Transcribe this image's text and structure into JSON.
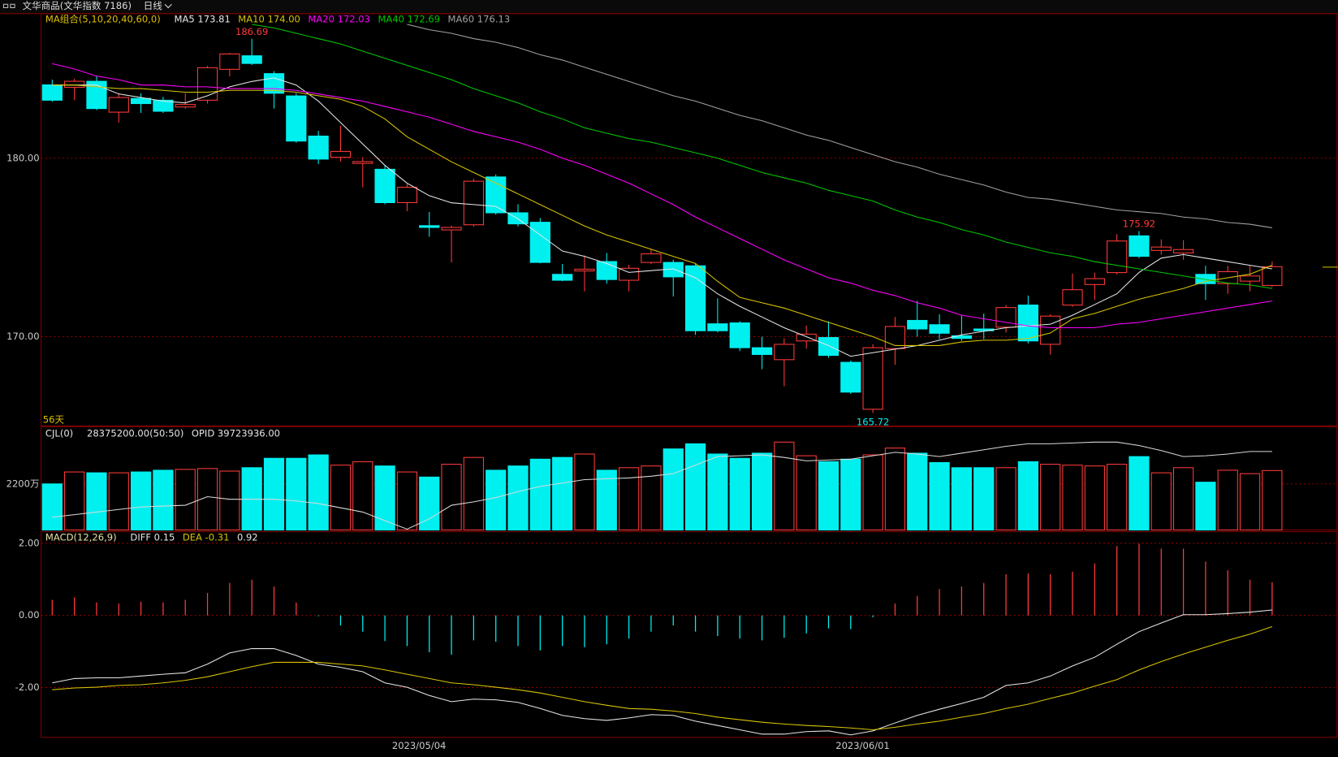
{
  "header": {
    "title": "文华商品(文华指数 7186)",
    "period": "日线"
  },
  "x_labels": [
    "2023/05/04",
    "2023/06/01"
  ],
  "chart_data": [
    {
      "type": "candlestick",
      "legend": "MA组合(5,10,20,40,60,0)",
      "legend_color": "#e0c000",
      "legend_items": [
        "MA5 173.81",
        "MA10 174.00",
        "MA20 172.03",
        "MA40 172.69",
        "MA60 176.13"
      ],
      "days_label": "56天",
      "up_color": "#ff3a3a",
      "down_color": "#00f0f0",
      "open": [
        184.11,
        183.97,
        184.31,
        182.58,
        183.35,
        183.25,
        182.87,
        183.25,
        184.98,
        185.74,
        184.74,
        183.49,
        181.24,
        180.05,
        179.71,
        179.38,
        177.51,
        176.22,
        175.98,
        176.27,
        178.95,
        176.94,
        176.41,
        173.49,
        173.68,
        174.21,
        173.16,
        174.16,
        174.16,
        173.97,
        170.72,
        170.77,
        169.38,
        168.71,
        169.76,
        169.95,
        168.56,
        165.93,
        169.33,
        170.91,
        170.67,
        170.05,
        170.43,
        170.53,
        171.77,
        169.57,
        171.77,
        172.92,
        173.59,
        175.65,
        174.83,
        174.69,
        173.49,
        172.97,
        173.11,
        172.87
      ],
      "high": [
        184.4,
        184.45,
        184.59,
        183.64,
        183.64,
        183.44,
        183.64,
        185.17,
        185.9,
        186.69,
        184.88,
        183.64,
        181.53,
        181.82,
        180.05,
        179.62,
        178.56,
        176.99,
        176.22,
        178.85,
        179.09,
        177.42,
        176.65,
        174.07,
        174.55,
        174.69,
        174.02,
        174.93,
        174.31,
        174.07,
        172.15,
        170.86,
        170.0,
        169.9,
        170.62,
        170.86,
        168.66,
        169.57,
        171.1,
        172.01,
        171.25,
        171.2,
        171.29,
        171.77,
        172.3,
        171.25,
        173.54,
        173.59,
        175.74,
        175.92,
        175.45,
        175.41,
        173.97,
        173.97,
        173.97,
        174.21
      ],
      "low": [
        183.16,
        183.25,
        182.7,
        182.0,
        182.54,
        182.54,
        182.78,
        183.06,
        184.59,
        185.22,
        182.78,
        180.86,
        179.67,
        179.81,
        178.37,
        177.42,
        177.03,
        175.6,
        174.16,
        176.17,
        176.84,
        176.17,
        174.11,
        173.11,
        172.54,
        172.97,
        172.54,
        174.07,
        172.25,
        170.1,
        170.24,
        169.19,
        168.18,
        167.22,
        169.33,
        168.81,
        166.79,
        165.72,
        168.42,
        170.0,
        169.86,
        169.76,
        169.86,
        170.24,
        169.62,
        169.0,
        171.67,
        172.06,
        173.49,
        174.4,
        174.59,
        174.31,
        172.06,
        172.4,
        172.54,
        172.78
      ],
      "close": [
        183.25,
        184.31,
        182.78,
        183.4,
        183.06,
        182.63,
        183.01,
        185.07,
        185.84,
        185.31,
        183.64,
        180.96,
        179.95,
        180.38,
        179.81,
        177.51,
        178.37,
        176.12,
        176.12,
        178.71,
        176.94,
        176.32,
        174.16,
        173.16,
        173.78,
        173.2,
        173.83,
        174.64,
        173.35,
        170.33,
        170.33,
        169.38,
        169.0,
        169.57,
        170.14,
        168.95,
        166.89,
        169.38,
        170.57,
        170.43,
        170.19,
        169.9,
        170.33,
        171.63,
        169.76,
        171.15,
        172.63,
        173.25,
        175.36,
        174.5,
        175.02,
        174.88,
        172.97,
        173.64,
        173.4,
        173.92
      ],
      "series": [
        {
          "color": "#e6e6e6",
          "values": [
            184.1,
            184.1,
            184.1,
            183.6,
            183.4,
            183.2,
            183.1,
            183.5,
            184.0,
            184.3,
            184.5,
            184.1,
            183.2,
            182.0,
            180.8,
            179.6,
            178.6,
            177.9,
            177.5,
            177.4,
            177.3,
            176.6,
            175.7,
            174.8,
            174.5,
            174.1,
            173.6,
            173.7,
            173.8,
            173.3,
            172.4,
            171.7,
            171.1,
            170.5,
            170.0,
            169.5,
            168.9,
            169.1,
            169.3,
            169.5,
            169.8,
            170.1,
            170.3,
            170.5,
            170.6,
            170.7,
            171.2,
            171.8,
            172.4,
            173.6,
            174.4,
            174.6,
            174.4,
            174.2,
            174.0,
            173.8
          ]
        },
        {
          "color": "#d8c400",
          "values": [
            184.1,
            184.1,
            184.0,
            183.9,
            183.9,
            183.8,
            183.7,
            183.7,
            183.8,
            183.8,
            183.8,
            183.7,
            183.5,
            183.3,
            182.9,
            182.2,
            181.2,
            180.5,
            179.8,
            179.2,
            178.6,
            178.0,
            177.4,
            176.8,
            176.2,
            175.7,
            175.3,
            174.9,
            174.5,
            174.1,
            173.1,
            172.2,
            171.9,
            171.6,
            171.2,
            170.8,
            170.4,
            170.0,
            169.5,
            169.5,
            169.5,
            169.7,
            169.8,
            169.8,
            169.9,
            170.2,
            171.0,
            171.3,
            171.7,
            172.1,
            172.4,
            172.7,
            173.1,
            173.3,
            173.5,
            174.0
          ]
        },
        {
          "color": "#ff00ff",
          "values": [
            185.3,
            185.0,
            184.6,
            184.4,
            184.1,
            184.1,
            184.0,
            184.0,
            183.9,
            183.9,
            183.9,
            183.8,
            183.6,
            183.4,
            183.2,
            182.9,
            182.6,
            182.3,
            181.9,
            181.5,
            181.2,
            180.9,
            180.5,
            180.0,
            179.6,
            179.1,
            178.6,
            178.0,
            177.4,
            176.7,
            176.1,
            175.5,
            174.9,
            174.3,
            173.8,
            173.3,
            173.0,
            172.6,
            172.3,
            171.9,
            171.6,
            171.2,
            171.0,
            170.8,
            170.6,
            170.5,
            170.5,
            170.5,
            170.7,
            170.8,
            171.0,
            171.2,
            171.4,
            171.6,
            171.8,
            172.0
          ]
        },
        {
          "color": "#00c800",
          "values": [
            null,
            null,
            null,
            null,
            null,
            null,
            null,
            null,
            null,
            187.5,
            187.3,
            187.0,
            186.7,
            186.4,
            186.0,
            185.6,
            185.2,
            184.8,
            184.4,
            183.9,
            183.5,
            183.1,
            182.6,
            182.2,
            181.7,
            181.4,
            181.1,
            180.9,
            180.6,
            180.3,
            180.0,
            179.6,
            179.2,
            178.9,
            178.6,
            178.2,
            177.9,
            177.6,
            177.1,
            176.7,
            176.4,
            176.0,
            175.7,
            175.3,
            175.0,
            174.7,
            174.5,
            174.2,
            174.0,
            173.8,
            173.6,
            173.4,
            173.2,
            173.0,
            172.9,
            172.7
          ]
        },
        {
          "color": "#a0a0a0",
          "values": [
            null,
            null,
            null,
            null,
            null,
            null,
            null,
            null,
            null,
            null,
            null,
            null,
            null,
            null,
            null,
            null,
            187.5,
            187.2,
            187.0,
            186.7,
            186.5,
            186.2,
            185.8,
            185.5,
            185.1,
            184.7,
            184.3,
            183.9,
            183.5,
            183.2,
            182.8,
            182.4,
            182.1,
            181.7,
            181.3,
            181.0,
            180.6,
            180.2,
            179.8,
            179.5,
            179.1,
            178.8,
            178.5,
            178.1,
            177.8,
            177.7,
            177.5,
            177.3,
            177.1,
            177.0,
            176.9,
            176.7,
            176.6,
            176.4,
            176.3,
            176.1
          ]
        }
      ],
      "annotations": [
        {
          "label": "186.69",
          "value": 186.69
        },
        {
          "label": "175.92",
          "value": 175.92
        },
        {
          "label": "165.72",
          "value": 165.72
        }
      ],
      "ylim": [
        165.0,
        188.1
      ],
      "yticks": [
        {
          "value": 180,
          "label": "180.00"
        },
        {
          "value": 170,
          "label": "170.00"
        }
      ],
      "grid": true
    },
    {
      "type": "bar",
      "legend": "CJL(0)",
      "legend_color": "#e6e6e6",
      "legend_items": [
        "28375200.00(50:50)",
        "OPID 39723936.00"
      ],
      "values": [
        2200,
        2770,
        2730,
        2730,
        2770,
        2852,
        2893,
        2933,
        2811,
        2974,
        3422,
        3422,
        3585,
        3096,
        3259,
        3056,
        2770,
        2526,
        3137,
        3463,
        2852,
        3056,
        3381,
        3463,
        3626,
        2852,
        2974,
        3056,
        3870,
        4115,
        3626,
        3422,
        3667,
        4196,
        3544,
        3259,
        3381,
        3585,
        3911,
        3667,
        3218,
        2974,
        2974,
        2974,
        3259,
        3137,
        3096,
        3056,
        3137,
        3504,
        2730,
        2974,
        2281,
        2852,
        2689,
        2837.52
      ],
      "series": [
        {
          "color": "#d8d8d8",
          "values": [
            611,
            733,
            856,
            978,
            1100,
            1141,
            1181,
            1589,
            1467,
            1467,
            1467,
            1385,
            1263,
            1059,
            856,
            448,
            41,
            530,
            1181,
            1344,
            1548,
            1833,
            2078,
            2241,
            2404,
            2444,
            2485,
            2567,
            2689,
            3096,
            3504,
            3544,
            3585,
            3463,
            3300,
            3341,
            3381,
            3544,
            3707,
            3626,
            3504,
            3667,
            3830,
            3993,
            4115,
            4115,
            4155,
            4196,
            4196,
            4033,
            3789,
            3504,
            3544,
            3626,
            3748,
            3748
          ]
        }
      ],
      "ylim": [
        0,
        4930
      ],
      "yticks": [
        {
          "value": 2200,
          "label": "2200万"
        }
      ],
      "grid": true
    },
    {
      "type": "macd",
      "legend": "MACD(12,26,9)",
      "legend_color": "#e8e0a0",
      "legend_items": [
        "DIFF 0.15",
        "DEA -0.31",
        "0.92"
      ],
      "values": [
        0.43,
        0.5,
        0.36,
        0.33,
        0.38,
        0.36,
        0.43,
        0.62,
        0.9,
        0.99,
        0.8,
        0.36,
        -0.02,
        -0.28,
        -0.45,
        -0.71,
        -0.85,
        -1.02,
        -1.09,
        -0.69,
        -0.73,
        -0.85,
        -0.97,
        -0.85,
        -0.88,
        -0.8,
        -0.64,
        -0.45,
        -0.28,
        -0.45,
        -0.57,
        -0.64,
        -0.69,
        -0.62,
        -0.5,
        -0.36,
        -0.38,
        -0.05,
        0.33,
        0.54,
        0.73,
        0.8,
        0.9,
        1.14,
        1.16,
        1.14,
        1.21,
        1.44,
        1.92,
        1.99,
        1.85,
        1.85,
        1.49,
        1.25,
        0.99,
        0.92
      ],
      "series": [
        {
          "color": "#e6e6e6",
          "values": [
            -1.87,
            -1.75,
            -1.73,
            -1.73,
            -1.68,
            -1.63,
            -1.59,
            -1.35,
            -1.04,
            -0.92,
            -0.92,
            -1.11,
            -1.35,
            -1.44,
            -1.56,
            -1.87,
            -1.99,
            -2.22,
            -2.39,
            -2.32,
            -2.34,
            -2.41,
            -2.58,
            -2.77,
            -2.86,
            -2.91,
            -2.84,
            -2.75,
            -2.77,
            -2.93,
            -3.05,
            -3.17,
            -3.29,
            -3.29,
            -3.22,
            -3.2,
            -3.31,
            -3.2,
            -2.98,
            -2.77,
            -2.6,
            -2.44,
            -2.27,
            -1.94,
            -1.87,
            -1.68,
            -1.4,
            -1.16,
            -0.8,
            -0.45,
            -0.21,
            0.02,
            0.02,
            0.05,
            0.09,
            0.15
          ]
        },
        {
          "color": "#d8c400",
          "values": [
            -2.06,
            -2.01,
            -1.99,
            -1.94,
            -1.92,
            -1.87,
            -1.8,
            -1.7,
            -1.56,
            -1.42,
            -1.3,
            -1.3,
            -1.3,
            -1.35,
            -1.4,
            -1.51,
            -1.63,
            -1.75,
            -1.87,
            -1.92,
            -1.99,
            -2.06,
            -2.15,
            -2.27,
            -2.39,
            -2.49,
            -2.58,
            -2.6,
            -2.65,
            -2.72,
            -2.82,
            -2.89,
            -2.96,
            -3.01,
            -3.05,
            -3.08,
            -3.12,
            -3.17,
            -3.1,
            -3.01,
            -2.93,
            -2.82,
            -2.72,
            -2.58,
            -2.46,
            -2.3,
            -2.15,
            -1.96,
            -1.78,
            -1.51,
            -1.28,
            -1.07,
            -0.88,
            -0.69,
            -0.52,
            -0.31
          ]
        }
      ],
      "legend_colors": [
        "#e6e6e6",
        "#d8c400",
        "#e6e6e6"
      ],
      "ylim": [
        -3.38,
        2.32
      ],
      "yticks": [
        {
          "value": 2,
          "label": "2.00"
        },
        {
          "value": 0,
          "label": "0.00"
        },
        {
          "value": -2,
          "label": "-2.00"
        }
      ],
      "grid": true
    }
  ]
}
